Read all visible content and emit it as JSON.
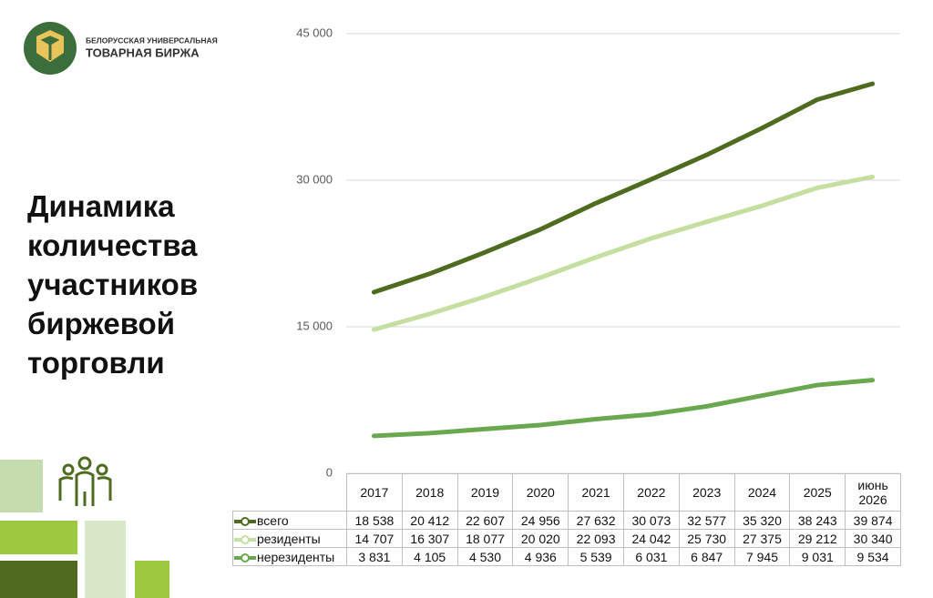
{
  "logo": {
    "line1": "БЕЛОРУССКАЯ УНИВЕРСАЛЬНАЯ",
    "line2": "ТОВАРНАЯ БИРЖА"
  },
  "chart_data": {
    "type": "line",
    "title": "Динамика количества участников биржевой торговли",
    "categories": [
      "2017",
      "2018",
      "2019",
      "2020",
      "2021",
      "2022",
      "2023",
      "2024",
      "2025",
      "июнь 2026"
    ],
    "series": [
      {
        "name": "всего",
        "color": "#4e6b1f",
        "values": [
          18538,
          20412,
          22607,
          24956,
          27632,
          30073,
          32577,
          35320,
          38243,
          39874
        ],
        "value_labels": [
          "18 538",
          "20 412",
          "22 607",
          "24 956",
          "27 632",
          "30 073",
          "32 577",
          "35 320",
          "38 243",
          "39 874"
        ]
      },
      {
        "name": "резиденты",
        "color": "#c4dfa0",
        "values": [
          14707,
          16307,
          18077,
          20020,
          22093,
          24042,
          25730,
          27375,
          29212,
          30340
        ],
        "value_labels": [
          "14 707",
          "16 307",
          "18 077",
          "20 020",
          "22 093",
          "24 042",
          "25 730",
          "27 375",
          "29 212",
          "30 340"
        ]
      },
      {
        "name": "нерезиденты",
        "color": "#6aa84f",
        "values": [
          3831,
          4105,
          4530,
          4936,
          5539,
          6031,
          6847,
          7945,
          9031,
          9534
        ],
        "value_labels": [
          "3 831",
          "4 105",
          "4 530",
          "4 936",
          "5 539",
          "6 031",
          "6 847",
          "7 945",
          "9 031",
          "9 534"
        ]
      }
    ],
    "ylim": [
      0,
      45000
    ],
    "yticks": [
      0,
      {
        "value": 15000,
        "label": "15 000"
      },
      {
        "value": 30000,
        "label": "30 000"
      },
      {
        "value": 45000,
        "label": "45 000"
      }
    ],
    "grid": true
  }
}
